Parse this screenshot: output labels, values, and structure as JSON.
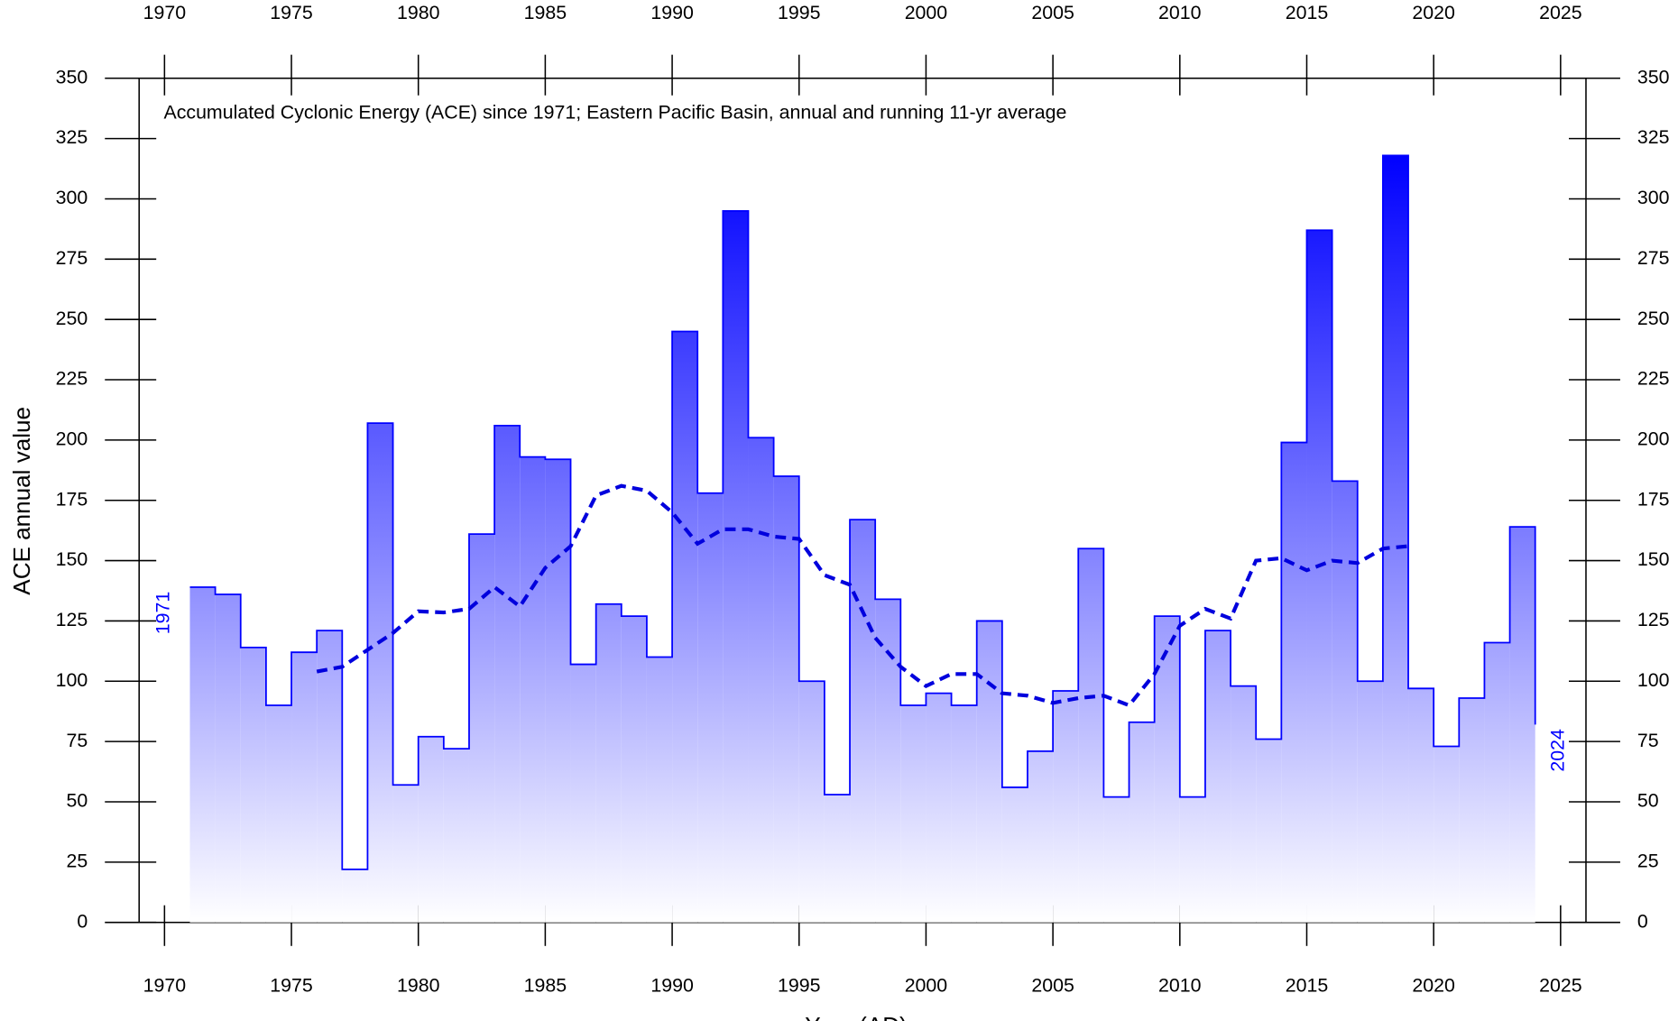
{
  "chart_data": {
    "type": "step",
    "title": "Accumulated Cyclonic Energy (ACE) since 1971; Eastern Pacific Basin, annual and running 11-yr average",
    "ylabel": "ACE annual value",
    "xlabel": "Year (AD)",
    "annotations": [
      "1971",
      "2024"
    ],
    "xlim": [
      1969,
      2026
    ],
    "ylim": [
      0,
      350
    ],
    "xticks": [
      1970,
      1975,
      1980,
      1985,
      1990,
      1995,
      2000,
      2005,
      2010,
      2015,
      2020,
      2025
    ],
    "yticks": [
      0,
      25,
      50,
      75,
      100,
      125,
      150,
      175,
      200,
      225,
      250,
      275,
      300,
      325,
      350
    ],
    "series": [
      {
        "name": "annual",
        "color": "#0000ff",
        "x": [
          1971,
          1972,
          1973,
          1974,
          1975,
          1976,
          1977,
          1978,
          1979,
          1980,
          1981,
          1982,
          1983,
          1984,
          1985,
          1986,
          1987,
          1988,
          1989,
          1990,
          1991,
          1992,
          1993,
          1994,
          1995,
          1996,
          1997,
          1998,
          1999,
          2000,
          2001,
          2002,
          2003,
          2004,
          2005,
          2006,
          2007,
          2008,
          2009,
          2010,
          2011,
          2012,
          2013,
          2014,
          2015,
          2016,
          2017,
          2018,
          2019,
          2020,
          2021,
          2022,
          2023,
          2024
        ],
        "values": [
          139,
          136,
          114,
          90,
          112,
          121,
          22,
          207,
          57,
          77,
          72,
          161,
          206,
          193,
          192,
          107,
          132,
          127,
          110,
          245,
          178,
          295,
          201,
          185,
          100,
          53,
          167,
          134,
          90,
          95,
          90,
          125,
          56,
          71,
          96,
          155,
          52,
          83,
          127,
          52,
          121,
          98,
          76,
          199,
          287,
          183,
          100,
          318,
          97,
          73,
          93,
          116,
          164,
          82
        ]
      },
      {
        "name": "running 11-yr average",
        "color": "#0000dd",
        "x": [
          1976,
          1977,
          1978,
          1979,
          1980,
          1981,
          1982,
          1983,
          1984,
          1985,
          1986,
          1987,
          1988,
          1989,
          1990,
          1991,
          1992,
          1993,
          1994,
          1995,
          1996,
          1997,
          1998,
          1999,
          2000,
          2001,
          2002,
          2003,
          2004,
          2005,
          2006,
          2007,
          2008,
          2009,
          2010,
          2011,
          2012,
          2013,
          2014,
          2015,
          2016,
          2017,
          2018,
          2019
        ],
        "values": [
          104,
          106,
          113,
          120,
          129,
          128.5,
          130,
          139,
          131,
          147,
          156,
          177,
          181,
          179,
          170,
          157,
          163,
          163,
          160,
          159,
          144,
          140,
          118,
          106,
          98,
          103,
          103,
          95,
          94,
          91,
          93,
          94,
          90,
          103,
          123,
          130,
          126,
          150,
          151,
          146,
          150,
          149,
          155,
          156
        ]
      }
    ]
  }
}
